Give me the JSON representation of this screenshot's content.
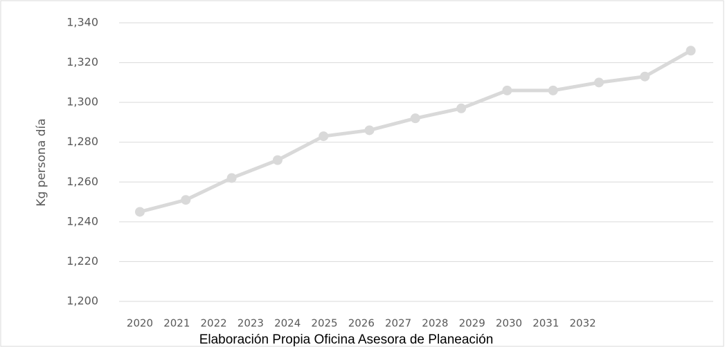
{
  "chart_data": {
    "type": "line",
    "caption": "Elaboración Propia Oficina Asesora de Planeación",
    "y_label": "Kg persona día",
    "categories": [
      "2020",
      "2021",
      "2022",
      "2023",
      "2024",
      "2025",
      "2026",
      "2027",
      "2028",
      "2029",
      "2030",
      "2031",
      "2032"
    ],
    "series": [
      {
        "name": "Kg persona día",
        "color": "#d9d9d9",
        "values": [
          1245,
          1251,
          1262,
          1271,
          1283,
          1286,
          1292,
          1297,
          1306,
          1306,
          1310,
          1313,
          1326
        ]
      }
    ],
    "ylim": [
      1200,
      1340
    ],
    "yticks": [
      {
        "value": 1200,
        "label": "1,200"
      },
      {
        "value": 1220,
        "label": "1,220"
      },
      {
        "value": 1240,
        "label": "1,240"
      },
      {
        "value": 1260,
        "label": "1,260"
      },
      {
        "value": 1280,
        "label": "1,280"
      },
      {
        "value": 1300,
        "label": "1,300"
      },
      {
        "value": 1320,
        "label": "1,320"
      },
      {
        "value": 1340,
        "label": "1,340"
      }
    ],
    "grid": true
  }
}
